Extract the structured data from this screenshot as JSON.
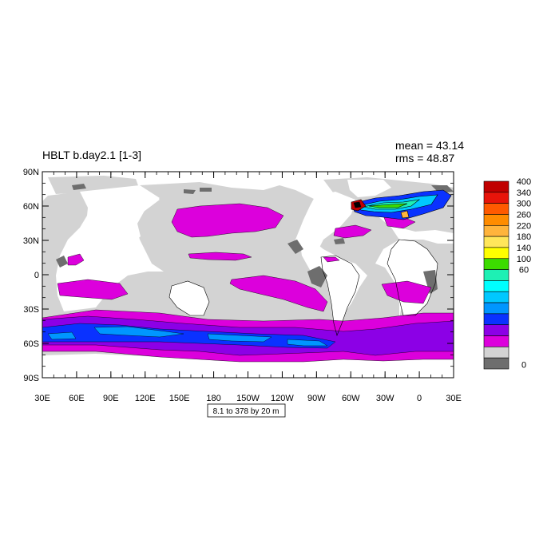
{
  "title": "HBLT b.day2.1 [1-3]",
  "stats": {
    "mean": "mean = 43.14",
    "rms": "rms = 48.87"
  },
  "contour_info": "8.1 to 378 by 20 m",
  "y_ticks": [
    "90N",
    "60N",
    "30N",
    "0",
    "30S",
    "60S",
    "90S"
  ],
  "x_ticks": [
    "30E",
    "60E",
    "90E",
    "120E",
    "150E",
    "180",
    "150W",
    "120W",
    "90W",
    "60W",
    "30W",
    "0",
    "30E"
  ],
  "colorbar": {
    "labels": [
      "400",
      "340",
      "300",
      "260",
      "220",
      "180",
      "140",
      "100",
      "60",
      "0"
    ],
    "colors": [
      "#c00000",
      "#e8140a",
      "#ff5a00",
      "#ff8c00",
      "#ffb43c",
      "#ffe65a",
      "#ffff00",
      "#3cdc00",
      "#1ef0b4",
      "#00ffff",
      "#00c8ff",
      "#0096ff",
      "#0a32ff",
      "#8c00e6",
      "#dc00dc",
      "#d3d3d3",
      "#6e6e6e"
    ]
  },
  "colors": {
    "land": "#ffffff",
    "ocean_low": "#d3d3d3",
    "dark": "#6e6e6e",
    "magenta": "#dc00dc",
    "purple": "#8c00e6",
    "blue": "#0a32ff",
    "light_blue": "#0096ff"
  }
}
